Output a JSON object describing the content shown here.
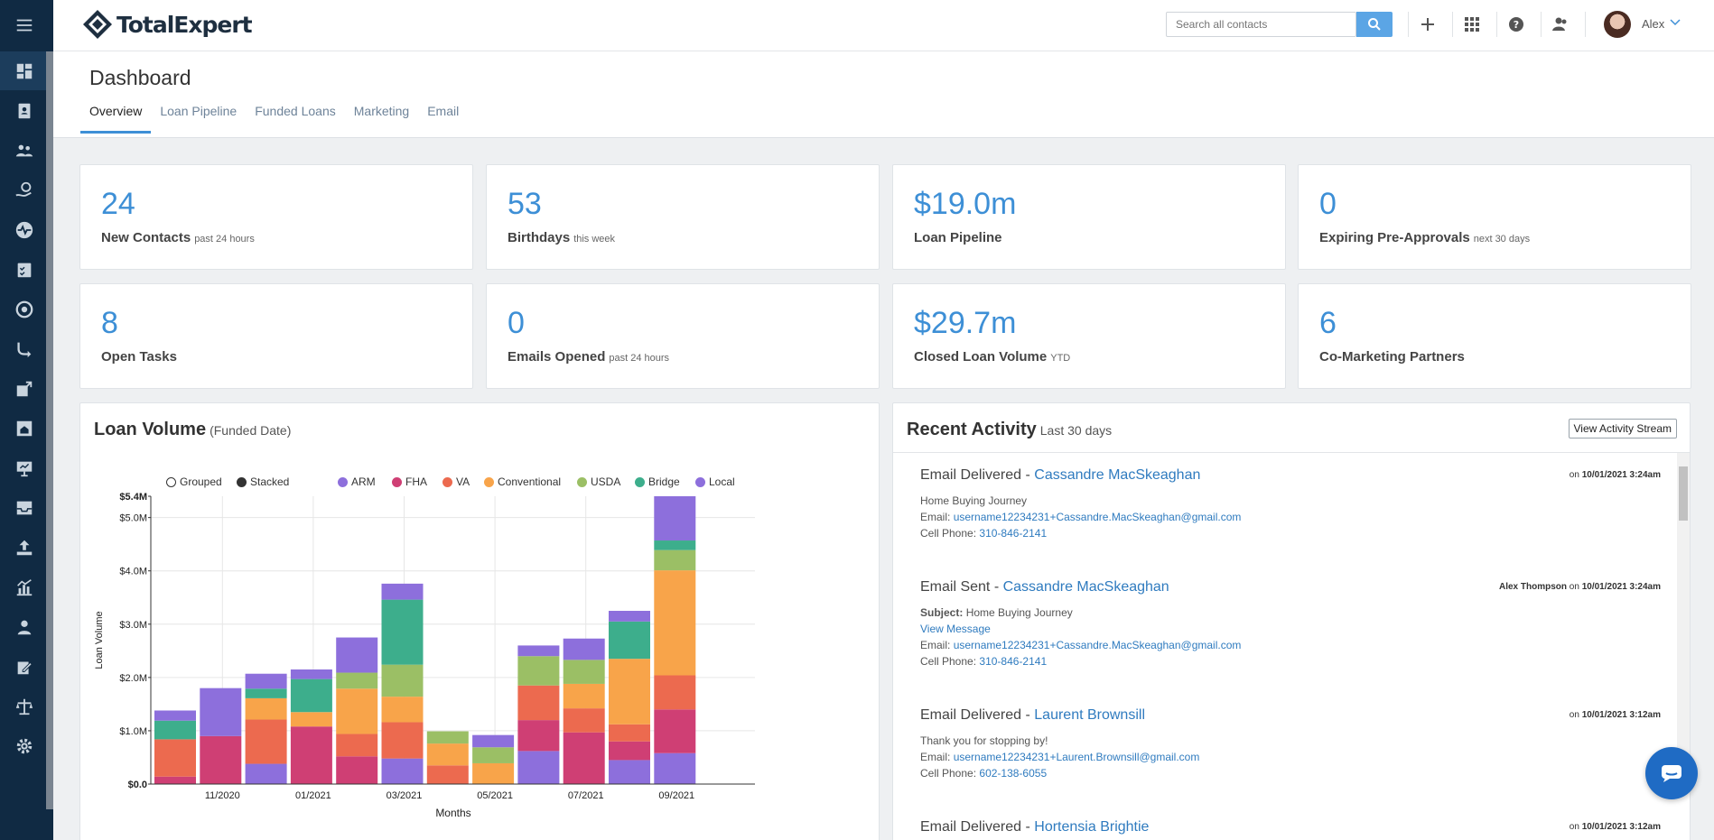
{
  "app": {
    "brand": "TotalExpert",
    "search_placeholder": "Search all contacts",
    "user_name": "Alex"
  },
  "page": {
    "title": "Dashboard",
    "tabs": [
      {
        "label": "Overview",
        "active": true
      },
      {
        "label": "Loan Pipeline",
        "active": false
      },
      {
        "label": "Funded Loans",
        "active": false
      },
      {
        "label": "Marketing",
        "active": false
      },
      {
        "label": "Email",
        "active": false
      }
    ]
  },
  "stats": [
    {
      "value": "24",
      "label": "New Contacts",
      "sub": "past 24 hours"
    },
    {
      "value": "53",
      "label": "Birthdays",
      "sub": "this week"
    },
    {
      "value": "$19.0m",
      "label": "Loan Pipeline",
      "sub": ""
    },
    {
      "value": "0",
      "label": "Expiring Pre-Approvals",
      "sub": "next 30 days"
    },
    {
      "value": "8",
      "label": "Open Tasks",
      "sub": ""
    },
    {
      "value": "0",
      "label": "Emails Opened",
      "sub": "past 24 hours"
    },
    {
      "value": "$29.7m",
      "label": "Closed Loan Volume",
      "sub": "YTD"
    },
    {
      "value": "6",
      "label": "Co-Marketing Partners",
      "sub": ""
    }
  ],
  "loan_volume": {
    "title": "Loan Volume",
    "subtitle": "(Funded Date)",
    "mode_options": [
      {
        "label": "Grouped",
        "selected": false
      },
      {
        "label": "Stacked",
        "selected": true
      }
    ]
  },
  "chart_data": {
    "type": "bar",
    "stacked": true,
    "title": "",
    "xlabel": "Months",
    "ylabel": "Loan Volume",
    "ylim": [
      0,
      5.4
    ],
    "y_unit": "$M",
    "y_ticks": [
      "$0.0",
      "$1.0M",
      "$2.0M",
      "$3.0M",
      "$4.0M",
      "$5.0M",
      "$5.4M"
    ],
    "y_tick_values": [
      0,
      1,
      2,
      3,
      4,
      5,
      5.4
    ],
    "x_tick_labels": [
      "11/2020",
      "01/2021",
      "03/2021",
      "05/2021",
      "07/2021",
      "09/2021"
    ],
    "x_tick_indices": [
      1,
      3,
      5,
      7,
      9,
      11
    ],
    "categories": [
      "10/2020",
      "11/2020",
      "12/2020",
      "01/2021",
      "02/2021",
      "03/2021",
      "04/2021",
      "05/2021",
      "06/2021",
      "07/2021",
      "08/2021",
      "09/2021"
    ],
    "legend_position": "top",
    "grid": true,
    "series": [
      {
        "name": "ARM",
        "color": "#8d6fdc",
        "values": [
          0.0,
          0.0,
          0.38,
          0.0,
          0.0,
          0.48,
          0.0,
          0.0,
          0.62,
          0.0,
          0.45,
          0.58
        ]
      },
      {
        "name": "FHA",
        "color": "#cf3f74",
        "values": [
          0.14,
          0.9,
          0.0,
          1.08,
          0.52,
          0.0,
          0.0,
          0.0,
          0.58,
          0.97,
          0.35,
          0.82
        ]
      },
      {
        "name": "VA",
        "color": "#ec6a4f",
        "values": [
          0.7,
          0.0,
          0.83,
          0.0,
          0.42,
          0.68,
          0.35,
          0.0,
          0.65,
          0.45,
          0.32,
          0.64
        ]
      },
      {
        "name": "Conventional",
        "color": "#f8a44a",
        "values": [
          0.0,
          0.0,
          0.4,
          0.27,
          0.85,
          0.48,
          0.41,
          0.39,
          0.0,
          0.46,
          1.23,
          1.97
        ]
      },
      {
        "name": "USDA",
        "color": "#9bbf65",
        "values": [
          0.0,
          0.0,
          0.0,
          0.0,
          0.3,
          0.6,
          0.23,
          0.3,
          0.55,
          0.45,
          0.0,
          0.38
        ]
      },
      {
        "name": "Bridge",
        "color": "#3dae8c",
        "values": [
          0.35,
          0.0,
          0.18,
          0.62,
          0.0,
          1.22,
          0.0,
          0.0,
          0.0,
          0.0,
          0.7,
          0.18
        ]
      },
      {
        "name": "Local",
        "color": "#8d6fdc",
        "values": [
          0.19,
          0.9,
          0.28,
          0.18,
          0.66,
          0.3,
          0.0,
          0.23,
          0.2,
          0.4,
          0.2,
          0.83
        ]
      }
    ]
  },
  "recent_activity": {
    "title": "Recent Activity",
    "subtitle": "Last 30 days",
    "view_stream_label": "View Activity Stream",
    "items": [
      {
        "type": "Email Delivered",
        "contact": "Cassandre MacSkeaghan",
        "actor": "",
        "date": "10/01/2021 3:24am",
        "lines": [
          {
            "label": "",
            "text": "Home Buying Journey"
          },
          {
            "label": "Email:",
            "link": "username12234231+Cassandre.MacSkeaghan@gmail.com"
          },
          {
            "label": "Cell Phone:",
            "link": "310-846-2141"
          }
        ]
      },
      {
        "type": "Email Sent",
        "contact": "Cassandre MacSkeaghan",
        "actor": "Alex Thompson",
        "date": "10/01/2021 3:24am",
        "lines": [
          {
            "label": "Subject:",
            "text": "Home Buying Journey"
          },
          {
            "label": "",
            "link": "View Message"
          },
          {
            "label": "Email:",
            "link": "username12234231+Cassandre.MacSkeaghan@gmail.com"
          },
          {
            "label": "Cell Phone:",
            "link": "310-846-2141"
          }
        ]
      },
      {
        "type": "Email Delivered",
        "contact": "Laurent Brownsill",
        "actor": "",
        "date": "10/01/2021 3:12am",
        "lines": [
          {
            "label": "",
            "text": "Thank you for stopping by!"
          },
          {
            "label": "Email:",
            "link": "username12234231+Laurent.Brownsill@gmail.com"
          },
          {
            "label": "Cell Phone:",
            "link": "602-138-6055"
          }
        ]
      },
      {
        "type": "Email Delivered",
        "contact": "Hortensia Brightie",
        "actor": "",
        "date": "10/01/2021 3:12am",
        "lines": []
      }
    ]
  },
  "colors": {
    "accent": "#3d8fd6",
    "sidebar": "#102a43",
    "link": "#2f7bbf"
  }
}
